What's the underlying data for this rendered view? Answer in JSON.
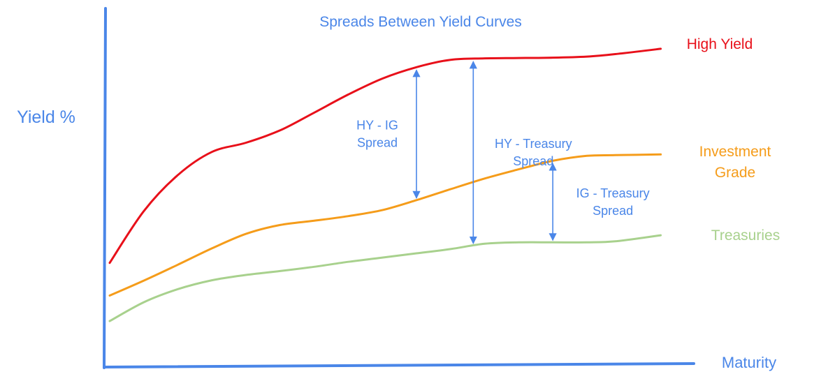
{
  "colors": {
    "axis": "#4a86e8",
    "title": "#4a86e8",
    "high_yield": "#e8101a",
    "investment_grade": "#f59c1a",
    "treasuries": "#a8d18d",
    "annotation": "#4a86e8"
  },
  "chart_data": {
    "type": "line",
    "title": "Spreads Between Yield Curves",
    "ylabel": "Yield %",
    "xlabel": "Maturity",
    "xlim": [
      0,
      10
    ],
    "ylim": [
      0,
      10
    ],
    "series": [
      {
        "name": "High Yield",
        "label_lines": [
          "High Yield"
        ],
        "color_key": "high_yield",
        "x": [
          0,
          0.6,
          1.2,
          1.8,
          2.4,
          3.0,
          3.6,
          4.2,
          4.8,
          5.4,
          6.0,
          6.6,
          7.2,
          7.8,
          8.4,
          8.9,
          9.7
        ],
        "y": [
          2.82,
          4.28,
          5.3,
          5.95,
          6.21,
          6.56,
          7.06,
          7.57,
          8.02,
          8.34,
          8.55,
          8.59,
          8.6,
          8.61,
          8.64,
          8.71,
          8.86
        ]
      },
      {
        "name": "Investment Grade",
        "label_lines": [
          "Investment",
          "Grade"
        ],
        "color_key": "investment_grade",
        "x": [
          0,
          0.6,
          1.2,
          1.8,
          2.4,
          3.0,
          3.6,
          4.2,
          4.8,
          5.4,
          6.0,
          6.6,
          7.2,
          7.8,
          8.4,
          8.9,
          9.7
        ],
        "y": [
          1.9,
          2.32,
          2.77,
          3.23,
          3.64,
          3.89,
          4.01,
          4.14,
          4.31,
          4.59,
          4.9,
          5.2,
          5.46,
          5.7,
          5.84,
          5.86,
          5.88
        ]
      },
      {
        "name": "Treasuries",
        "label_lines": [
          "Treasuries"
        ],
        "color_key": "treasuries",
        "x": [
          0,
          0.6,
          1.2,
          1.8,
          2.4,
          3.0,
          3.6,
          4.2,
          4.8,
          5.4,
          6.0,
          6.6,
          7.2,
          7.8,
          8.4,
          8.9,
          9.7
        ],
        "y": [
          1.18,
          1.71,
          2.08,
          2.33,
          2.48,
          2.59,
          2.71,
          2.85,
          2.97,
          3.09,
          3.21,
          3.36,
          3.4,
          3.4,
          3.4,
          3.43,
          3.6
        ]
      }
    ],
    "annotations": [
      {
        "label_lines": [
          "HY - IG",
          "Spread"
        ],
        "x": 5.4,
        "from_series": "Investment Grade",
        "to_series": "High Yield",
        "label_side": "left"
      },
      {
        "label_lines": [
          "HY - Treasury",
          "Spread"
        ],
        "x": 6.4,
        "from_series": "Treasuries",
        "to_series": "High Yield",
        "label_side": "right"
      },
      {
        "label_lines": [
          "IG - Treasury",
          "Spread"
        ],
        "x": 7.8,
        "from_series": "Treasuries",
        "to_series": "Investment Grade",
        "label_side": "right"
      }
    ]
  }
}
